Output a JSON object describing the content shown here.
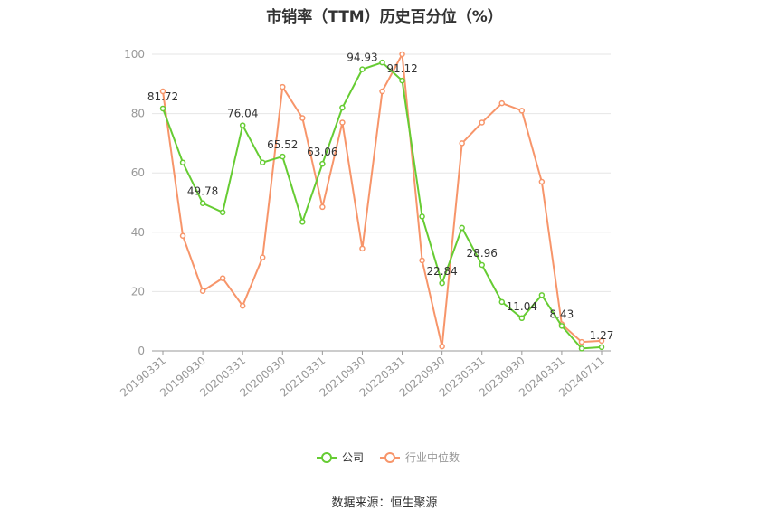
{
  "chart_data": {
    "type": "line",
    "title": "市销率（TTM）历史百分位（%）",
    "source": "数据来源：恒生聚源",
    "ylim": [
      0,
      100
    ],
    "yticks": [
      0,
      20,
      40,
      60,
      80,
      100
    ],
    "x_tick_labels": [
      "20190331",
      "20190930",
      "20200331",
      "20200930",
      "20210331",
      "20210930",
      "20220331",
      "20220930",
      "20230331",
      "20230930",
      "20240331",
      "20240711"
    ],
    "x": [
      "20190331",
      "20190630",
      "20190930",
      "20191231",
      "20200331",
      "20200630",
      "20200930",
      "20201231",
      "20210331",
      "20210630",
      "20210930",
      "20211231",
      "20220331",
      "20220630",
      "20220930",
      "20221231",
      "20230331",
      "20230630",
      "20230930",
      "20231231",
      "20240331",
      "20240630",
      "20240711"
    ],
    "grid": true,
    "legend_position": "bottom",
    "series": [
      {
        "name": "公司",
        "color": "#66cc33",
        "values": [
          81.72,
          63.5,
          49.78,
          46.7,
          76.04,
          63.5,
          65.52,
          43.5,
          63.06,
          82.0,
          94.93,
          97.2,
          91.12,
          45.3,
          22.84,
          41.5,
          28.96,
          16.5,
          11.04,
          18.8,
          8.43,
          0.8,
          1.27
        ],
        "labels": {
          "0": "81.72",
          "2": "49.78",
          "4": "76.04",
          "6": "65.52",
          "8": "63.06",
          "10": "94.93",
          "12": "91.12",
          "14": "22.84",
          "16": "28.96",
          "18": "11.04",
          "20": "8.43",
          "22": "1.27"
        }
      },
      {
        "name": "行业中位数",
        "color": "#f7956a",
        "values": [
          87.5,
          38.8,
          20.2,
          24.5,
          15.2,
          31.5,
          89.0,
          78.5,
          48.5,
          77.0,
          34.5,
          87.5,
          100.0,
          30.5,
          1.5,
          70.0,
          77.0,
          83.5,
          81.0,
          57.0,
          9.0,
          3.0,
          3.4
        ]
      }
    ]
  }
}
